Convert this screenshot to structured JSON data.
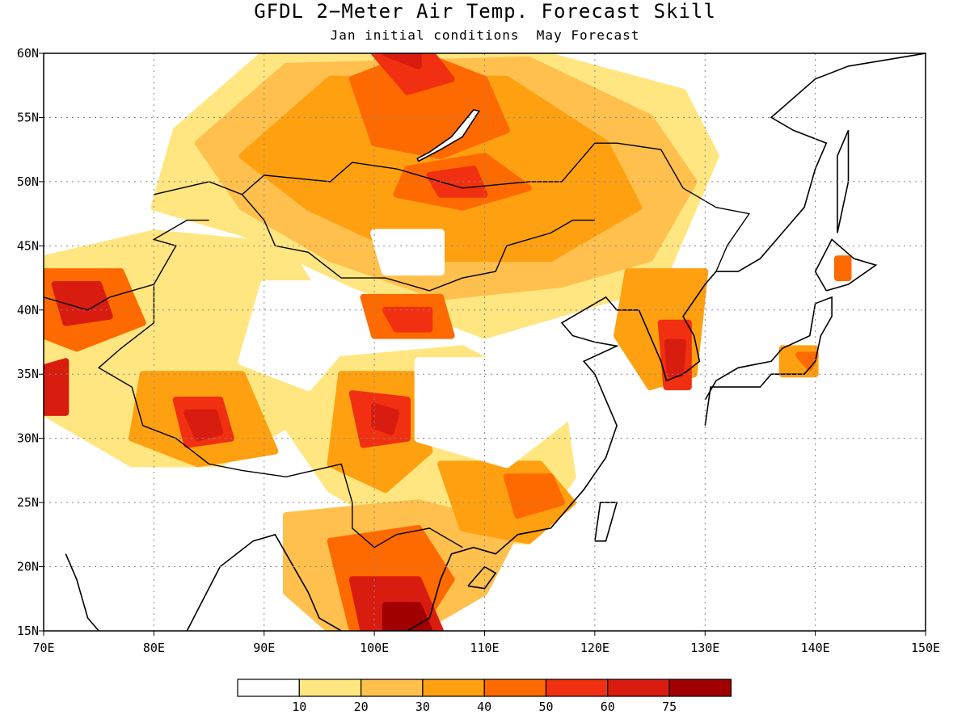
{
  "figure": {
    "title": "GFDL 2−Meter Air Temp. Forecast Skill",
    "subtitle": "Jan initial conditions  May Forecast"
  },
  "map": {
    "projection": "lat-lon",
    "lon_range": [
      70,
      150
    ],
    "lat_range": [
      15,
      60
    ],
    "lon_ticks": [
      "70E",
      "80E",
      "90E",
      "100E",
      "110E",
      "120E",
      "130E",
      "140E",
      "150E"
    ],
    "lat_ticks": [
      "15N",
      "20N",
      "25N",
      "30N",
      "35N",
      "40N",
      "45N",
      "50N",
      "55N",
      "60N"
    ],
    "grid": "dotted",
    "coastlines": "black"
  },
  "colorbar": {
    "labels": [
      "10",
      "20",
      "30",
      "40",
      "50",
      "60",
      "75"
    ],
    "colors": [
      "#ffffff",
      "#ffe680",
      "#ffc04d",
      "#ffa010",
      "#ff6a00",
      "#f03010",
      "#d81c10",
      "#a00000"
    ]
  },
  "fields": [
    {
      "name": "mongolia-siberia-zone",
      "level": 3
    },
    {
      "name": "lake-baikal-region",
      "level": 4
    },
    {
      "name": "central-siberia-core",
      "level": 6
    },
    {
      "name": "northern-mongolia-core",
      "level": 5
    },
    {
      "name": "gansu-inner-mongolia-core",
      "level": 5
    },
    {
      "name": "sichuan-core",
      "level": 6
    },
    {
      "name": "tibet-core",
      "level": 6
    },
    {
      "name": "kyrgyz-core",
      "level": 6
    },
    {
      "name": "indochina-core",
      "level": 7
    },
    {
      "name": "south-china-zone",
      "level": 4
    },
    {
      "name": "korea-core",
      "level": 6
    },
    {
      "name": "hokkaido-patch",
      "level": 4
    },
    {
      "name": "honshu-patch",
      "level": 4
    }
  ]
}
